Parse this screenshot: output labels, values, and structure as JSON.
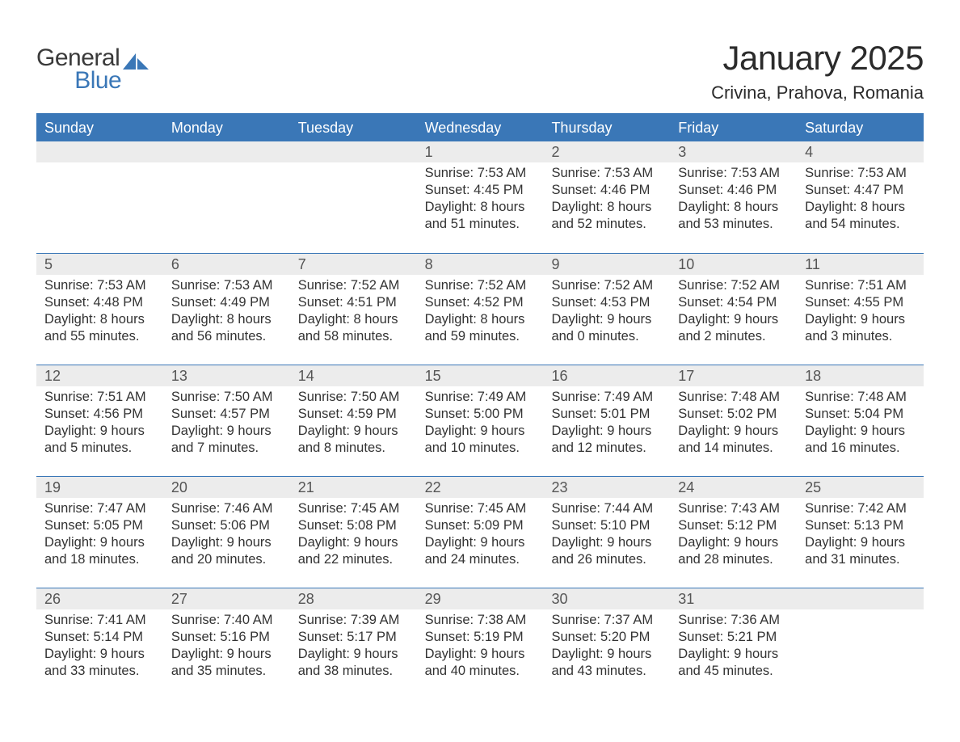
{
  "brand": {
    "general": "General",
    "blue": "Blue",
    "general_color": "#3a3a3a",
    "blue_color": "#3a77b7",
    "icon_color": "#3a77b7"
  },
  "header": {
    "month_title": "January 2025",
    "location": "Crivina, Prahova, Romania",
    "title_color": "#2b2b2b",
    "title_fontsize": 42,
    "location_fontsize": 22
  },
  "calendar": {
    "header_bg": "#3a77b7",
    "header_text_color": "#ffffff",
    "row_separator_color": "#3a77b7",
    "daynum_band_bg": "#ececec",
    "daynum_text_color": "#555555",
    "body_text_color": "#333333",
    "page_bg": "#ffffff",
    "weekday_fontsize": 18,
    "body_fontsize": 16.5,
    "weekdays": [
      "Sunday",
      "Monday",
      "Tuesday",
      "Wednesday",
      "Thursday",
      "Friday",
      "Saturday"
    ],
    "weeks": [
      [
        {
          "blank": true
        },
        {
          "blank": true
        },
        {
          "blank": true
        },
        {
          "day": "1",
          "sunrise": "Sunrise: 7:53 AM",
          "sunset": "Sunset: 4:45 PM",
          "dl1": "Daylight: 8 hours",
          "dl2": "and 51 minutes."
        },
        {
          "day": "2",
          "sunrise": "Sunrise: 7:53 AM",
          "sunset": "Sunset: 4:46 PM",
          "dl1": "Daylight: 8 hours",
          "dl2": "and 52 minutes."
        },
        {
          "day": "3",
          "sunrise": "Sunrise: 7:53 AM",
          "sunset": "Sunset: 4:46 PM",
          "dl1": "Daylight: 8 hours",
          "dl2": "and 53 minutes."
        },
        {
          "day": "4",
          "sunrise": "Sunrise: 7:53 AM",
          "sunset": "Sunset: 4:47 PM",
          "dl1": "Daylight: 8 hours",
          "dl2": "and 54 minutes."
        }
      ],
      [
        {
          "day": "5",
          "sunrise": "Sunrise: 7:53 AM",
          "sunset": "Sunset: 4:48 PM",
          "dl1": "Daylight: 8 hours",
          "dl2": "and 55 minutes."
        },
        {
          "day": "6",
          "sunrise": "Sunrise: 7:53 AM",
          "sunset": "Sunset: 4:49 PM",
          "dl1": "Daylight: 8 hours",
          "dl2": "and 56 minutes."
        },
        {
          "day": "7",
          "sunrise": "Sunrise: 7:52 AM",
          "sunset": "Sunset: 4:51 PM",
          "dl1": "Daylight: 8 hours",
          "dl2": "and 58 minutes."
        },
        {
          "day": "8",
          "sunrise": "Sunrise: 7:52 AM",
          "sunset": "Sunset: 4:52 PM",
          "dl1": "Daylight: 8 hours",
          "dl2": "and 59 minutes."
        },
        {
          "day": "9",
          "sunrise": "Sunrise: 7:52 AM",
          "sunset": "Sunset: 4:53 PM",
          "dl1": "Daylight: 9 hours",
          "dl2": "and 0 minutes."
        },
        {
          "day": "10",
          "sunrise": "Sunrise: 7:52 AM",
          "sunset": "Sunset: 4:54 PM",
          "dl1": "Daylight: 9 hours",
          "dl2": "and 2 minutes."
        },
        {
          "day": "11",
          "sunrise": "Sunrise: 7:51 AM",
          "sunset": "Sunset: 4:55 PM",
          "dl1": "Daylight: 9 hours",
          "dl2": "and 3 minutes."
        }
      ],
      [
        {
          "day": "12",
          "sunrise": "Sunrise: 7:51 AM",
          "sunset": "Sunset: 4:56 PM",
          "dl1": "Daylight: 9 hours",
          "dl2": "and 5 minutes."
        },
        {
          "day": "13",
          "sunrise": "Sunrise: 7:50 AM",
          "sunset": "Sunset: 4:57 PM",
          "dl1": "Daylight: 9 hours",
          "dl2": "and 7 minutes."
        },
        {
          "day": "14",
          "sunrise": "Sunrise: 7:50 AM",
          "sunset": "Sunset: 4:59 PM",
          "dl1": "Daylight: 9 hours",
          "dl2": "and 8 minutes."
        },
        {
          "day": "15",
          "sunrise": "Sunrise: 7:49 AM",
          "sunset": "Sunset: 5:00 PM",
          "dl1": "Daylight: 9 hours",
          "dl2": "and 10 minutes."
        },
        {
          "day": "16",
          "sunrise": "Sunrise: 7:49 AM",
          "sunset": "Sunset: 5:01 PM",
          "dl1": "Daylight: 9 hours",
          "dl2": "and 12 minutes."
        },
        {
          "day": "17",
          "sunrise": "Sunrise: 7:48 AM",
          "sunset": "Sunset: 5:02 PM",
          "dl1": "Daylight: 9 hours",
          "dl2": "and 14 minutes."
        },
        {
          "day": "18",
          "sunrise": "Sunrise: 7:48 AM",
          "sunset": "Sunset: 5:04 PM",
          "dl1": "Daylight: 9 hours",
          "dl2": "and 16 minutes."
        }
      ],
      [
        {
          "day": "19",
          "sunrise": "Sunrise: 7:47 AM",
          "sunset": "Sunset: 5:05 PM",
          "dl1": "Daylight: 9 hours",
          "dl2": "and 18 minutes."
        },
        {
          "day": "20",
          "sunrise": "Sunrise: 7:46 AM",
          "sunset": "Sunset: 5:06 PM",
          "dl1": "Daylight: 9 hours",
          "dl2": "and 20 minutes."
        },
        {
          "day": "21",
          "sunrise": "Sunrise: 7:45 AM",
          "sunset": "Sunset: 5:08 PM",
          "dl1": "Daylight: 9 hours",
          "dl2": "and 22 minutes."
        },
        {
          "day": "22",
          "sunrise": "Sunrise: 7:45 AM",
          "sunset": "Sunset: 5:09 PM",
          "dl1": "Daylight: 9 hours",
          "dl2": "and 24 minutes."
        },
        {
          "day": "23",
          "sunrise": "Sunrise: 7:44 AM",
          "sunset": "Sunset: 5:10 PM",
          "dl1": "Daylight: 9 hours",
          "dl2": "and 26 minutes."
        },
        {
          "day": "24",
          "sunrise": "Sunrise: 7:43 AM",
          "sunset": "Sunset: 5:12 PM",
          "dl1": "Daylight: 9 hours",
          "dl2": "and 28 minutes."
        },
        {
          "day": "25",
          "sunrise": "Sunrise: 7:42 AM",
          "sunset": "Sunset: 5:13 PM",
          "dl1": "Daylight: 9 hours",
          "dl2": "and 31 minutes."
        }
      ],
      [
        {
          "day": "26",
          "sunrise": "Sunrise: 7:41 AM",
          "sunset": "Sunset: 5:14 PM",
          "dl1": "Daylight: 9 hours",
          "dl2": "and 33 minutes."
        },
        {
          "day": "27",
          "sunrise": "Sunrise: 7:40 AM",
          "sunset": "Sunset: 5:16 PM",
          "dl1": "Daylight: 9 hours",
          "dl2": "and 35 minutes."
        },
        {
          "day": "28",
          "sunrise": "Sunrise: 7:39 AM",
          "sunset": "Sunset: 5:17 PM",
          "dl1": "Daylight: 9 hours",
          "dl2": "and 38 minutes."
        },
        {
          "day": "29",
          "sunrise": "Sunrise: 7:38 AM",
          "sunset": "Sunset: 5:19 PM",
          "dl1": "Daylight: 9 hours",
          "dl2": "and 40 minutes."
        },
        {
          "day": "30",
          "sunrise": "Sunrise: 7:37 AM",
          "sunset": "Sunset: 5:20 PM",
          "dl1": "Daylight: 9 hours",
          "dl2": "and 43 minutes."
        },
        {
          "day": "31",
          "sunrise": "Sunrise: 7:36 AM",
          "sunset": "Sunset: 5:21 PM",
          "dl1": "Daylight: 9 hours",
          "dl2": "and 45 minutes."
        },
        {
          "blank": true
        }
      ]
    ]
  }
}
